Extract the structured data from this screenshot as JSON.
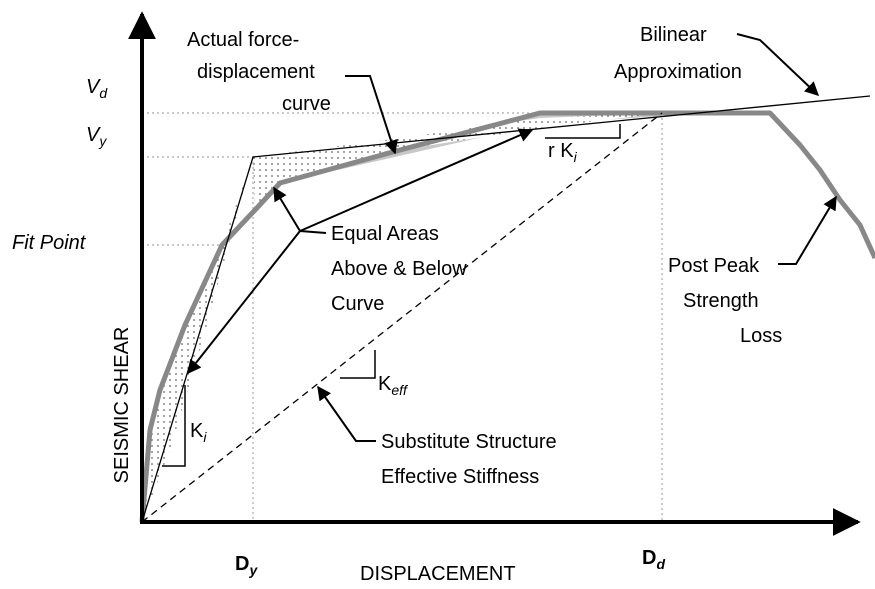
{
  "axes": {
    "y_label": "SEISMIC SHEAR",
    "x_label": "DISPLACEMENT"
  },
  "y_markers": [
    {
      "main": "V",
      "sub": "d"
    },
    {
      "main": "V",
      "sub": "y"
    },
    {
      "main": "Fit Point"
    }
  ],
  "x_markers": [
    {
      "main": "D",
      "sub": "y"
    },
    {
      "main": "D",
      "sub": "d"
    }
  ],
  "annotations": {
    "actual_curve": [
      "Actual force-",
      "displacement",
      "curve"
    ],
    "bilinear": [
      "Bilinear",
      "Approximation"
    ],
    "equal_areas": [
      "Equal Areas",
      "Above & Below",
      "Curve"
    ],
    "post_peak": [
      "Post Peak",
      "Strength",
      "Loss"
    ],
    "substitute": [
      "Substitute Structure",
      "Effective Stiffness"
    ]
  },
  "stiffness_labels": {
    "ki": {
      "main": "K",
      "sub": "i"
    },
    "rki": {
      "main": "r K",
      "sub": "i"
    },
    "keff": {
      "main": "K",
      "sub": "eff"
    }
  }
}
